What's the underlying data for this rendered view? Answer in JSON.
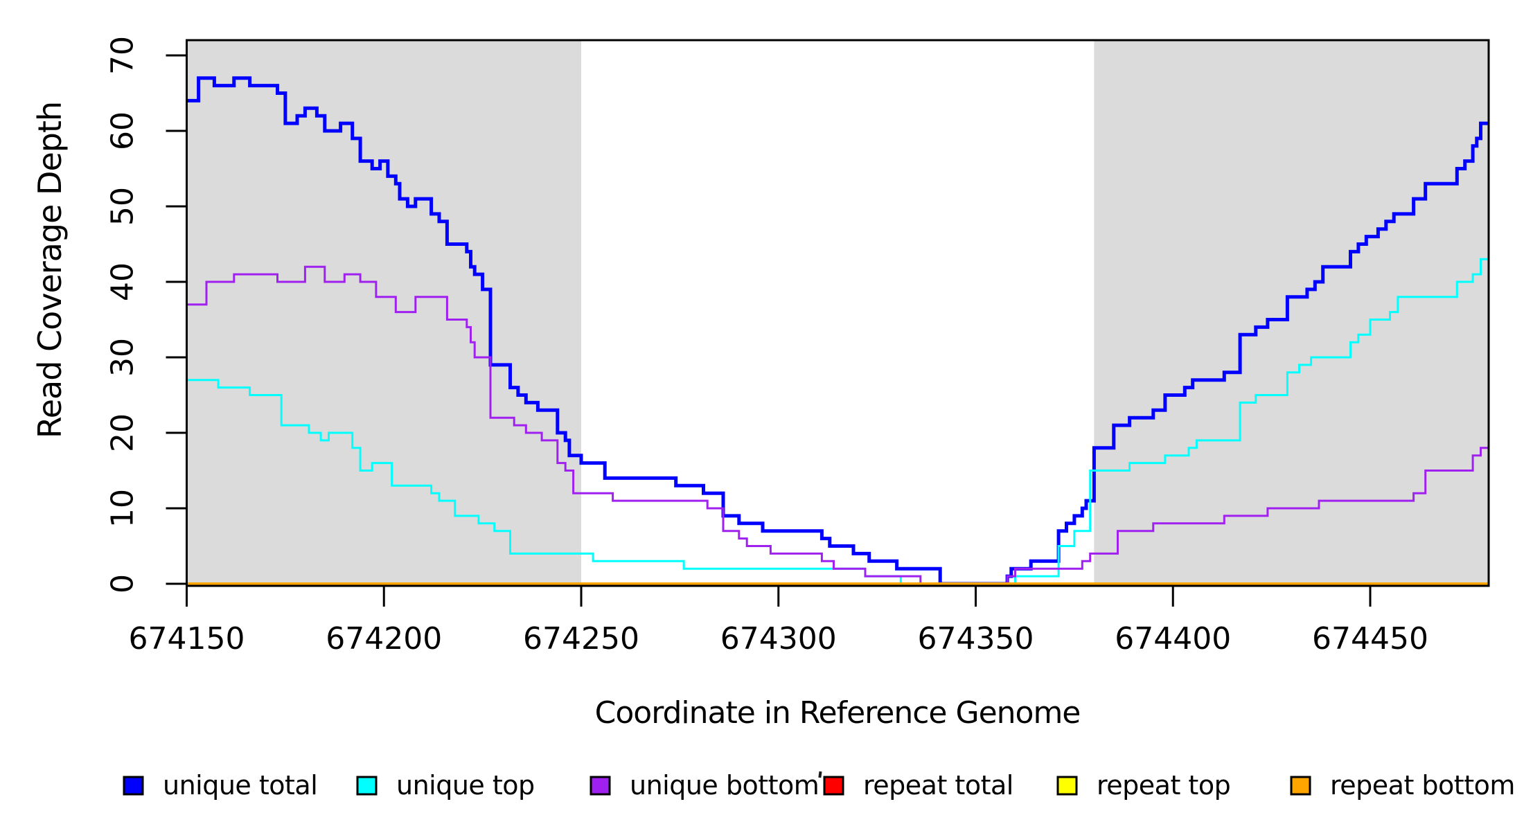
{
  "chart_data": {
    "type": "line",
    "subtype": "step",
    "title": "",
    "xlabel": "Coordinate in Reference Genome",
    "ylabel": "Read Coverage Depth",
    "x_range": [
      674150,
      674480
    ],
    "ylim": [
      0,
      70
    ],
    "x_ticks": [
      674150,
      674200,
      674250,
      674300,
      674350,
      674400,
      674450
    ],
    "y_ticks": [
      0,
      10,
      20,
      30,
      40,
      50,
      60,
      70
    ],
    "grid": false,
    "legend_position": "bottom",
    "background_color": "#ffffff",
    "shaded_region_color": "#dbdbdb",
    "shaded_regions": [
      {
        "name": "left-shaded-region",
        "x0": 674150,
        "x1": 674250
      },
      {
        "name": "right-shaded-region",
        "x0": 674380,
        "x1": 674480
      }
    ],
    "series": [
      {
        "name": "unique total",
        "color": "#0000ff",
        "line_width": 5,
        "step_points": [
          [
            674150,
            64
          ],
          [
            674153,
            67
          ],
          [
            674157,
            66
          ],
          [
            674162,
            67
          ],
          [
            674166,
            66
          ],
          [
            674173,
            65
          ],
          [
            674175,
            61
          ],
          [
            674178,
            62
          ],
          [
            674180,
            63
          ],
          [
            674183,
            62
          ],
          [
            674185,
            60
          ],
          [
            674189,
            61
          ],
          [
            674192,
            59
          ],
          [
            674194,
            56
          ],
          [
            674197,
            55
          ],
          [
            674199,
            56
          ],
          [
            674201,
            54
          ],
          [
            674203,
            53
          ],
          [
            674204,
            51
          ],
          [
            674206,
            50
          ],
          [
            674208,
            51
          ],
          [
            674212,
            49
          ],
          [
            674214,
            48
          ],
          [
            674216,
            45
          ],
          [
            674221,
            44
          ],
          [
            674222,
            42
          ],
          [
            674223,
            41
          ],
          [
            674225,
            39
          ],
          [
            674227,
            29
          ],
          [
            674232,
            26
          ],
          [
            674234,
            25
          ],
          [
            674236,
            24
          ],
          [
            674239,
            23
          ],
          [
            674244,
            20
          ],
          [
            674246,
            19
          ],
          [
            674247,
            17
          ],
          [
            674250,
            16
          ],
          [
            674256,
            14
          ],
          [
            674274,
            13
          ],
          [
            674281,
            12
          ],
          [
            674286,
            9
          ],
          [
            674290,
            8
          ],
          [
            674296,
            7
          ],
          [
            674311,
            6
          ],
          [
            674313,
            5
          ],
          [
            674319,
            4
          ],
          [
            674323,
            3
          ],
          [
            674330,
            2
          ],
          [
            674341,
            0
          ],
          [
            674358,
            1
          ],
          [
            674359,
            2
          ],
          [
            674364,
            3
          ],
          [
            674371,
            7
          ],
          [
            674373,
            8
          ],
          [
            674375,
            9
          ],
          [
            674377,
            10
          ],
          [
            674378,
            11
          ],
          [
            674380,
            18
          ],
          [
            674385,
            21
          ],
          [
            674389,
            22
          ],
          [
            674395,
            23
          ],
          [
            674398,
            25
          ],
          [
            674403,
            26
          ],
          [
            674405,
            27
          ],
          [
            674413,
            28
          ],
          [
            674417,
            33
          ],
          [
            674421,
            34
          ],
          [
            674424,
            35
          ],
          [
            674429,
            38
          ],
          [
            674434,
            39
          ],
          [
            674436,
            40
          ],
          [
            674438,
            42
          ],
          [
            674445,
            44
          ],
          [
            674447,
            45
          ],
          [
            674449,
            46
          ],
          [
            674452,
            47
          ],
          [
            674454,
            48
          ],
          [
            674456,
            49
          ],
          [
            674461,
            51
          ],
          [
            674464,
            53
          ],
          [
            674472,
            55
          ],
          [
            674474,
            56
          ],
          [
            674476,
            58
          ],
          [
            674477,
            59
          ],
          [
            674478,
            61
          ]
        ]
      },
      {
        "name": "unique top",
        "color": "#00ffff",
        "line_width": 3,
        "step_points": [
          [
            674150,
            27
          ],
          [
            674158,
            26
          ],
          [
            674166,
            25
          ],
          [
            674174,
            21
          ],
          [
            674181,
            20
          ],
          [
            674184,
            19
          ],
          [
            674186,
            20
          ],
          [
            674192,
            18
          ],
          [
            674194,
            15
          ],
          [
            674197,
            16
          ],
          [
            674202,
            13
          ],
          [
            674212,
            12
          ],
          [
            674214,
            11
          ],
          [
            674218,
            9
          ],
          [
            674224,
            8
          ],
          [
            674228,
            7
          ],
          [
            674232,
            4
          ],
          [
            674253,
            3
          ],
          [
            674276,
            2
          ],
          [
            674322,
            1
          ],
          [
            674331,
            0
          ],
          [
            674360,
            1
          ],
          [
            674371,
            5
          ],
          [
            674375,
            7
          ],
          [
            674379,
            15
          ],
          [
            674389,
            16
          ],
          [
            674398,
            17
          ],
          [
            674404,
            18
          ],
          [
            674406,
            19
          ],
          [
            674417,
            24
          ],
          [
            674421,
            25
          ],
          [
            674429,
            28
          ],
          [
            674432,
            29
          ],
          [
            674435,
            30
          ],
          [
            674445,
            32
          ],
          [
            674447,
            33
          ],
          [
            674450,
            35
          ],
          [
            674455,
            36
          ],
          [
            674457,
            38
          ],
          [
            674472,
            40
          ],
          [
            674476,
            41
          ],
          [
            674478,
            43
          ]
        ]
      },
      {
        "name": "unique bottom",
        "color": "#a020f0",
        "line_width": 3,
        "step_points": [
          [
            674150,
            37
          ],
          [
            674155,
            40
          ],
          [
            674162,
            41
          ],
          [
            674173,
            40
          ],
          [
            674180,
            42
          ],
          [
            674185,
            40
          ],
          [
            674190,
            41
          ],
          [
            674194,
            40
          ],
          [
            674198,
            38
          ],
          [
            674203,
            36
          ],
          [
            674208,
            38
          ],
          [
            674216,
            35
          ],
          [
            674221,
            34
          ],
          [
            674222,
            32
          ],
          [
            674223,
            30
          ],
          [
            674227,
            22
          ],
          [
            674233,
            21
          ],
          [
            674236,
            20
          ],
          [
            674240,
            19
          ],
          [
            674244,
            16
          ],
          [
            674246,
            15
          ],
          [
            674248,
            12
          ],
          [
            674258,
            11
          ],
          [
            674282,
            10
          ],
          [
            674286,
            7
          ],
          [
            674290,
            6
          ],
          [
            674292,
            5
          ],
          [
            674298,
            4
          ],
          [
            674311,
            3
          ],
          [
            674314,
            2
          ],
          [
            674322,
            1
          ],
          [
            674336,
            0
          ],
          [
            674358,
            1
          ],
          [
            674360,
            2
          ],
          [
            674377,
            3
          ],
          [
            674379,
            4
          ],
          [
            674386,
            7
          ],
          [
            674395,
            8
          ],
          [
            674413,
            9
          ],
          [
            674424,
            10
          ],
          [
            674437,
            11
          ],
          [
            674461,
            12
          ],
          [
            674464,
            15
          ],
          [
            674476,
            17
          ],
          [
            674478,
            18
          ]
        ]
      },
      {
        "name": "repeat total",
        "color": "#ff0000",
        "line_width": 3,
        "step_points": [
          [
            674150,
            0
          ]
        ]
      },
      {
        "name": "repeat top",
        "color": "#ffff00",
        "line_width": 3,
        "step_points": [
          [
            674150,
            0
          ]
        ]
      },
      {
        "name": "repeat bottom",
        "color": "#ffa500",
        "line_width": 4,
        "step_points": [
          [
            674150,
            0
          ]
        ]
      }
    ]
  },
  "legend": {
    "items": [
      {
        "label": "unique total",
        "color": "#0000ff"
      },
      {
        "label": "unique top",
        "color": "#00ffff"
      },
      {
        "label": "unique bottom",
        "color": "#a020f0"
      },
      {
        "label": "repeat total",
        "color": "#ff0000"
      },
      {
        "label": "repeat top",
        "color": "#ffff00"
      },
      {
        "label": "repeat bottom",
        "color": "#ffa500"
      }
    ]
  }
}
